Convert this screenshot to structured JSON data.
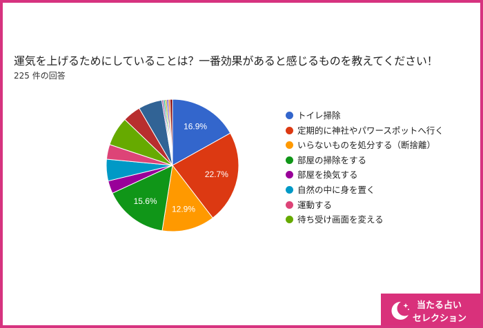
{
  "title": "運気を上げるためにしていることは？一番効果があると感じるものを教えてください！",
  "response_count": "225 件の回答",
  "logo": {
    "line1": "当たる占い",
    "line2": "セレクション"
  },
  "colors": {
    "frame": "#d6337f",
    "logo_bg": "#d9317b"
  },
  "chart_data": {
    "type": "pie",
    "start_angle_deg": 90,
    "direction": "clockwise",
    "legend_position": "right",
    "slices": [
      {
        "label": "トイレ掃除",
        "value": 16.9,
        "data_label": "16.9%",
        "color": "#3366cc"
      },
      {
        "label": "定期的に神社やパワースポットへ行く",
        "value": 22.7,
        "data_label": "22.7%",
        "color": "#dc3912"
      },
      {
        "label": "いらないものを処分する（断捨離）",
        "value": 12.9,
        "data_label": "12.9%",
        "color": "#ff9900"
      },
      {
        "label": "部屋の掃除をする",
        "value": 15.6,
        "data_label": "15.6%",
        "color": "#109618"
      },
      {
        "label": "部屋を換気する",
        "value": 3.1,
        "color": "#990099"
      },
      {
        "label": "自然の中に身を置く",
        "value": 5.3,
        "color": "#0099c6"
      },
      {
        "label": "運動する",
        "value": 3.6,
        "color": "#dd4477"
      },
      {
        "label": "待ち受け画面を変える",
        "value": 7.1,
        "color": "#66aa00"
      },
      {
        "value": 4.4,
        "color": "#b82e2e"
      },
      {
        "value": 5.8,
        "color": "#316395"
      },
      {
        "value": 0.4,
        "color": "#994499"
      },
      {
        "value": 0.4,
        "color": "#22aa99"
      },
      {
        "value": 0.4,
        "color": "#aaaa11"
      },
      {
        "value": 0.4,
        "color": "#6633cc"
      },
      {
        "value": 0.4,
        "color": "#e67300"
      },
      {
        "value": 0.6,
        "color": "#8b0707"
      }
    ]
  }
}
